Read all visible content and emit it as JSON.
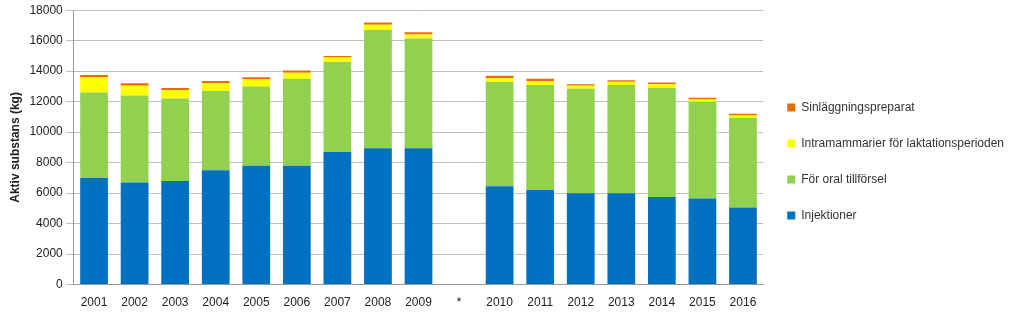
{
  "chart_data": {
    "type": "bar",
    "stacked": true,
    "y_label": "Aktiv substans (kg)",
    "categories": [
      "2001",
      "2002",
      "2003",
      "2004",
      "2005",
      "2006",
      "2007",
      "2008",
      "2009",
      "*",
      "2010",
      "2011",
      "2012",
      "2013",
      "2014",
      "2015",
      "2016"
    ],
    "series": [
      {
        "name": "Injektioner",
        "color": "#0070c0",
        "values": [
          7000,
          6700,
          6800,
          7500,
          7800,
          7800,
          8700,
          8950,
          8950,
          null,
          6450,
          6200,
          6000,
          6000,
          5750,
          5650,
          5050
        ]
      },
      {
        "name": "För oral tillförsel",
        "color": "#92d050",
        "values": [
          5600,
          5700,
          5400,
          5200,
          5200,
          5700,
          5900,
          7750,
          7200,
          null,
          6850,
          6900,
          6850,
          7100,
          7150,
          6350,
          5900
        ]
      },
      {
        "name": "Intramammarier för laktationsperioden",
        "color": "#ffff00",
        "values": [
          1000,
          650,
          550,
          500,
          450,
          400,
          300,
          350,
          250,
          null,
          250,
          250,
          200,
          200,
          250,
          150,
          150
        ]
      },
      {
        "name": "Sinläggningspreparat",
        "color": "#e46c0a",
        "values": [
          150,
          150,
          150,
          150,
          150,
          150,
          100,
          150,
          150,
          null,
          150,
          150,
          100,
          100,
          100,
          100,
          100
        ]
      }
    ],
    "ylim": [
      0,
      18000
    ],
    "yticks": [
      0,
      2000,
      4000,
      6000,
      8000,
      10000,
      12000,
      14000,
      16000,
      18000
    ],
    "grid": true,
    "legend": "right"
  }
}
